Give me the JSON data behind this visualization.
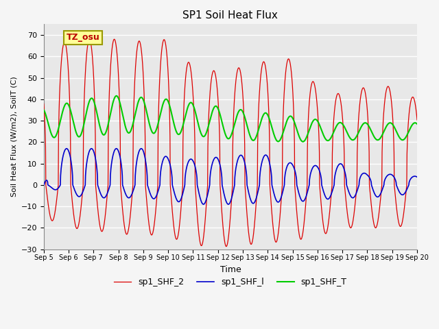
{
  "title": "SP1 Soil Heat Flux",
  "xlabel": "Time",
  "ylabel": "Soil Heat Flux (W/m2), SoilT (C)",
  "ylim": [
    -30,
    75
  ],
  "yticks": [
    -30,
    -20,
    -10,
    0,
    10,
    20,
    30,
    40,
    50,
    60,
    70
  ],
  "bg_color": "#e8e8e8",
  "grid_color": "#ffffff",
  "line_shf2_color": "#dd0000",
  "line_shf1_color": "#0000cc",
  "line_shfT_color": "#00cc00",
  "legend_entries": [
    "sp1_SHF_2",
    "sp1_SHF_l",
    "sp1_SHF_T"
  ],
  "annotation_text": "TZ_osu",
  "annotation_color": "#bb0000",
  "annotation_bg": "#ffff99",
  "annotation_border": "#999900"
}
